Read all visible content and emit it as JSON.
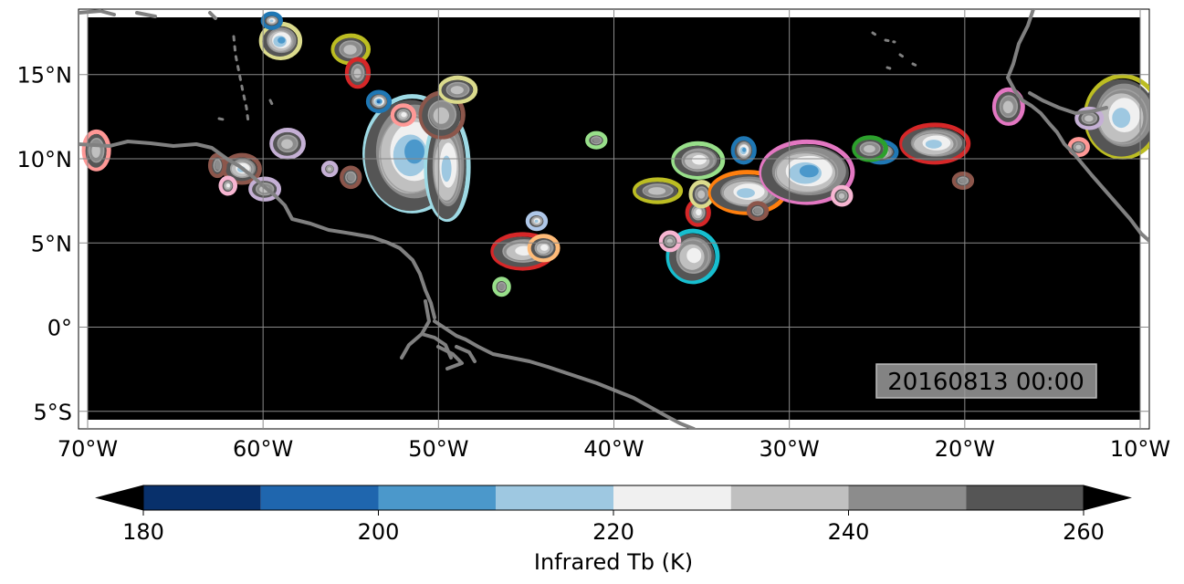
{
  "map": {
    "extent": {
      "lon_min": -70,
      "lon_max": -10,
      "lat_min": -5.5,
      "lat_max": 18.4
    },
    "background_color": "#000000",
    "gridlines": true,
    "coastline_color": "#808080",
    "lon_ticks": [
      {
        "value": -70,
        "label": "70°W"
      },
      {
        "value": -60,
        "label": "60°W"
      },
      {
        "value": -50,
        "label": "50°W"
      },
      {
        "value": -40,
        "label": "40°W"
      },
      {
        "value": -30,
        "label": "30°W"
      },
      {
        "value": -20,
        "label": "20°W"
      },
      {
        "value": -10,
        "label": "10°W"
      }
    ],
    "lat_ticks": [
      {
        "value": 15,
        "label": "15°N"
      },
      {
        "value": 10,
        "label": "10°N"
      },
      {
        "value": 5,
        "label": "5°N"
      },
      {
        "value": 0,
        "label": "0°"
      },
      {
        "value": -5,
        "label": "5°S"
      }
    ],
    "timestamp": "20160813 00:00"
  },
  "colorbar": {
    "label": "Infrared Tb (K)",
    "bins": [
      {
        "from": 180,
        "to": 190,
        "color": "#08306b"
      },
      {
        "from": 190,
        "to": 200,
        "color": "#1f66ae"
      },
      {
        "from": 200,
        "to": 210,
        "color": "#4b98cb"
      },
      {
        "from": 210,
        "to": 220,
        "color": "#9ec8e1"
      },
      {
        "from": 220,
        "to": 230,
        "color": "#f0f0f0"
      },
      {
        "from": 230,
        "to": 240,
        "color": "#c0c0c0"
      },
      {
        "from": 240,
        "to": 250,
        "color": "#8c8c8c"
      },
      {
        "from": 250,
        "to": 260,
        "color": "#555555"
      }
    ],
    "under_color": "#000000",
    "over_color": "#000000",
    "ticks": [
      {
        "value": 180,
        "label": "180"
      },
      {
        "value": 200,
        "label": "200"
      },
      {
        "value": 220,
        "label": "220"
      },
      {
        "value": 240,
        "label": "240"
      },
      {
        "value": 260,
        "label": "260"
      }
    ]
  },
  "cloud_systems": [
    {
      "lon": -51.5,
      "lat": 10.3,
      "rx": 2.6,
      "ry": 3.3,
      "core": 2,
      "outline": "#9edae5"
    },
    {
      "lon": -49.5,
      "lat": 9.5,
      "rx": 1.1,
      "ry": 3.0,
      "core": 3,
      "outline": "#9edae5"
    },
    {
      "lon": -49.8,
      "lat": 12.6,
      "rx": 1.1,
      "ry": 1.2,
      "core": 5,
      "outline": "#8c564b"
    },
    {
      "lon": -48.9,
      "lat": 14.1,
      "rx": 0.9,
      "ry": 0.6,
      "core": 5,
      "outline": "#dbdb8d"
    },
    {
      "lon": -52.0,
      "lat": 12.6,
      "rx": 0.5,
      "ry": 0.45,
      "core": 4,
      "outline": "#ff9896"
    },
    {
      "lon": -55.0,
      "lat": 16.5,
      "rx": 0.9,
      "ry": 0.7,
      "core": 5,
      "outline": "#bcbd22"
    },
    {
      "lon": -59.0,
      "lat": 17.0,
      "rx": 1.0,
      "ry": 0.9,
      "core": 2,
      "outline": "#dbdb8d"
    },
    {
      "lon": -54.6,
      "lat": 15.1,
      "rx": 0.5,
      "ry": 0.7,
      "core": 5,
      "outline": "#d62728"
    },
    {
      "lon": -53.4,
      "lat": 13.4,
      "rx": 0.5,
      "ry": 0.45,
      "core": 1,
      "outline": "#1f77b4"
    },
    {
      "lon": -58.6,
      "lat": 10.9,
      "rx": 0.8,
      "ry": 0.7,
      "core": 5,
      "outline": "#c5b0d5"
    },
    {
      "lon": -61.2,
      "lat": 9.4,
      "rx": 0.9,
      "ry": 0.7,
      "core": 3,
      "outline": "#8c564b"
    },
    {
      "lon": -59.9,
      "lat": 8.2,
      "rx": 0.7,
      "ry": 0.5,
      "core": 5,
      "outline": "#c5b0d5"
    },
    {
      "lon": -62.0,
      "lat": 8.4,
      "rx": 0.3,
      "ry": 0.35,
      "core": 4,
      "outline": "#f7b6d2"
    },
    {
      "lon": -62.6,
      "lat": 9.6,
      "rx": 0.3,
      "ry": 0.5,
      "core": 6,
      "outline": "#8c564b"
    },
    {
      "lon": -55.0,
      "lat": 8.9,
      "rx": 0.4,
      "ry": 0.45,
      "core": 6,
      "outline": "#8c564b"
    },
    {
      "lon": -56.2,
      "lat": 9.4,
      "rx": 0.25,
      "ry": 0.25,
      "core": 5,
      "outline": "#c5b0d5"
    },
    {
      "lon": -69.5,
      "lat": 10.5,
      "rx": 0.6,
      "ry": 1.0,
      "core": 5,
      "outline": "#ff9896"
    },
    {
      "lon": -45.2,
      "lat": 4.5,
      "rx": 1.6,
      "ry": 0.9,
      "core": 4,
      "outline": "#d62728"
    },
    {
      "lon": -44.0,
      "lat": 4.7,
      "rx": 0.7,
      "ry": 0.6,
      "core": 4,
      "outline": "#ffbb78"
    },
    {
      "lon": -44.4,
      "lat": 6.3,
      "rx": 0.4,
      "ry": 0.35,
      "core": 3,
      "outline": "#aec7e8"
    },
    {
      "lon": -46.4,
      "lat": 2.4,
      "rx": 0.3,
      "ry": 0.35,
      "core": 6,
      "outline": "#98df8a"
    },
    {
      "lon": -41.0,
      "lat": 11.1,
      "rx": 0.4,
      "ry": 0.3,
      "core": 6,
      "outline": "#98df8a"
    },
    {
      "lon": -37.5,
      "lat": 8.1,
      "rx": 1.2,
      "ry": 0.55,
      "core": 5,
      "outline": "#bcbd22"
    },
    {
      "lon": -35.2,
      "lat": 9.9,
      "rx": 1.3,
      "ry": 0.9,
      "core": 4,
      "outline": "#98df8a"
    },
    {
      "lon": -35.5,
      "lat": 4.2,
      "rx": 1.3,
      "ry": 1.4,
      "core": 4,
      "outline": "#17becf"
    },
    {
      "lon": -35.2,
      "lat": 6.8,
      "rx": 0.5,
      "ry": 0.6,
      "core": 4,
      "outline": "#d62728"
    },
    {
      "lon": -35.0,
      "lat": 7.9,
      "rx": 0.5,
      "ry": 0.6,
      "core": 5,
      "outline": "#dbdb8d"
    },
    {
      "lon": -32.4,
      "lat": 8.0,
      "rx": 2.0,
      "ry": 1.1,
      "core": 3,
      "outline": "#ff7f0e"
    },
    {
      "lon": -32.6,
      "lat": 10.5,
      "rx": 0.5,
      "ry": 0.6,
      "core": 2,
      "outline": "#1f77b4"
    },
    {
      "lon": -29.0,
      "lat": 9.2,
      "rx": 2.5,
      "ry": 1.7,
      "core": 2,
      "outline": "#e377c2"
    },
    {
      "lon": -36.8,
      "lat": 5.1,
      "rx": 0.4,
      "ry": 0.4,
      "core": 5,
      "outline": "#f7b6d2"
    },
    {
      "lon": -27.0,
      "lat": 7.8,
      "rx": 0.4,
      "ry": 0.4,
      "core": 5,
      "outline": "#f7b6d2"
    },
    {
      "lon": -31.8,
      "lat": 6.9,
      "rx": 0.4,
      "ry": 0.35,
      "core": 6,
      "outline": "#8c564b"
    },
    {
      "lon": -24.8,
      "lat": 10.4,
      "rx": 0.8,
      "ry": 0.5,
      "core": 3,
      "outline": "#1f77b4"
    },
    {
      "lon": -25.4,
      "lat": 10.6,
      "rx": 0.8,
      "ry": 0.55,
      "core": 5,
      "outline": "#2ca02c"
    },
    {
      "lon": -21.7,
      "lat": 10.9,
      "rx": 1.8,
      "ry": 1.0,
      "core": 3,
      "outline": "#d62728"
    },
    {
      "lon": -20.1,
      "lat": 8.7,
      "rx": 0.4,
      "ry": 0.3,
      "core": 6,
      "outline": "#8c564b"
    },
    {
      "lon": -17.5,
      "lat": 13.1,
      "rx": 0.7,
      "ry": 0.9,
      "core": 5,
      "outline": "#e377c2"
    },
    {
      "lon": -11.0,
      "lat": 12.5,
      "rx": 2.0,
      "ry": 2.3,
      "core": 3,
      "outline": "#bcbd22"
    },
    {
      "lon": -12.9,
      "lat": 12.4,
      "rx": 0.6,
      "ry": 0.45,
      "core": 5,
      "outline": "#c5b0d5"
    },
    {
      "lon": -13.5,
      "lat": 10.7,
      "rx": 0.4,
      "ry": 0.35,
      "core": 5,
      "outline": "#ff9896"
    },
    {
      "lon": -59.5,
      "lat": 18.2,
      "rx": 0.4,
      "ry": 0.3,
      "core": 3,
      "outline": "#1f77b4"
    }
  ]
}
